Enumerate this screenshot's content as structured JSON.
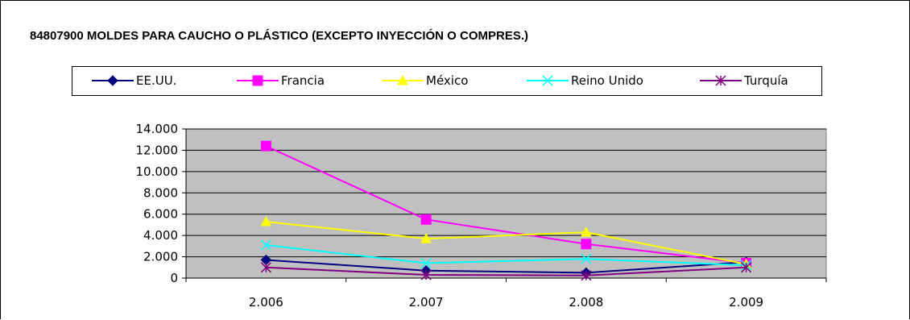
{
  "chart_data": {
    "type": "line",
    "title": "84807900 MOLDES PARA CAUCHO O PLÁSTICO (EXCEPTO INYECCIÓN O COMPRES.)",
    "categories": [
      "2.006",
      "2.007",
      "2.008",
      "2.009"
    ],
    "y_ticks": [
      "0",
      "2.000",
      "4.000",
      "6.000",
      "8.000",
      "10.000",
      "12.000",
      "14.000"
    ],
    "ylim": [
      0,
      14000
    ],
    "grid": true,
    "legend_position": "top",
    "plot_background": "#c0c0c0",
    "series": [
      {
        "name": "EE.UU.",
        "color": "#000080",
        "marker": "diamond",
        "values": [
          1700,
          700,
          500,
          1500
        ]
      },
      {
        "name": "Francia",
        "color": "#ff00ff",
        "marker": "square",
        "values": [
          12400,
          5500,
          3200,
          1400
        ]
      },
      {
        "name": "México",
        "color": "#ffff00",
        "marker": "triangle",
        "values": [
          5300,
          3700,
          4300,
          1300
        ]
      },
      {
        "name": "Reino Unido",
        "color": "#00ffff",
        "marker": "x",
        "values": [
          3100,
          1400,
          1800,
          1200
        ]
      },
      {
        "name": "Turquía",
        "color": "#800080",
        "marker": "star",
        "values": [
          1000,
          300,
          250,
          1000
        ]
      }
    ]
  }
}
